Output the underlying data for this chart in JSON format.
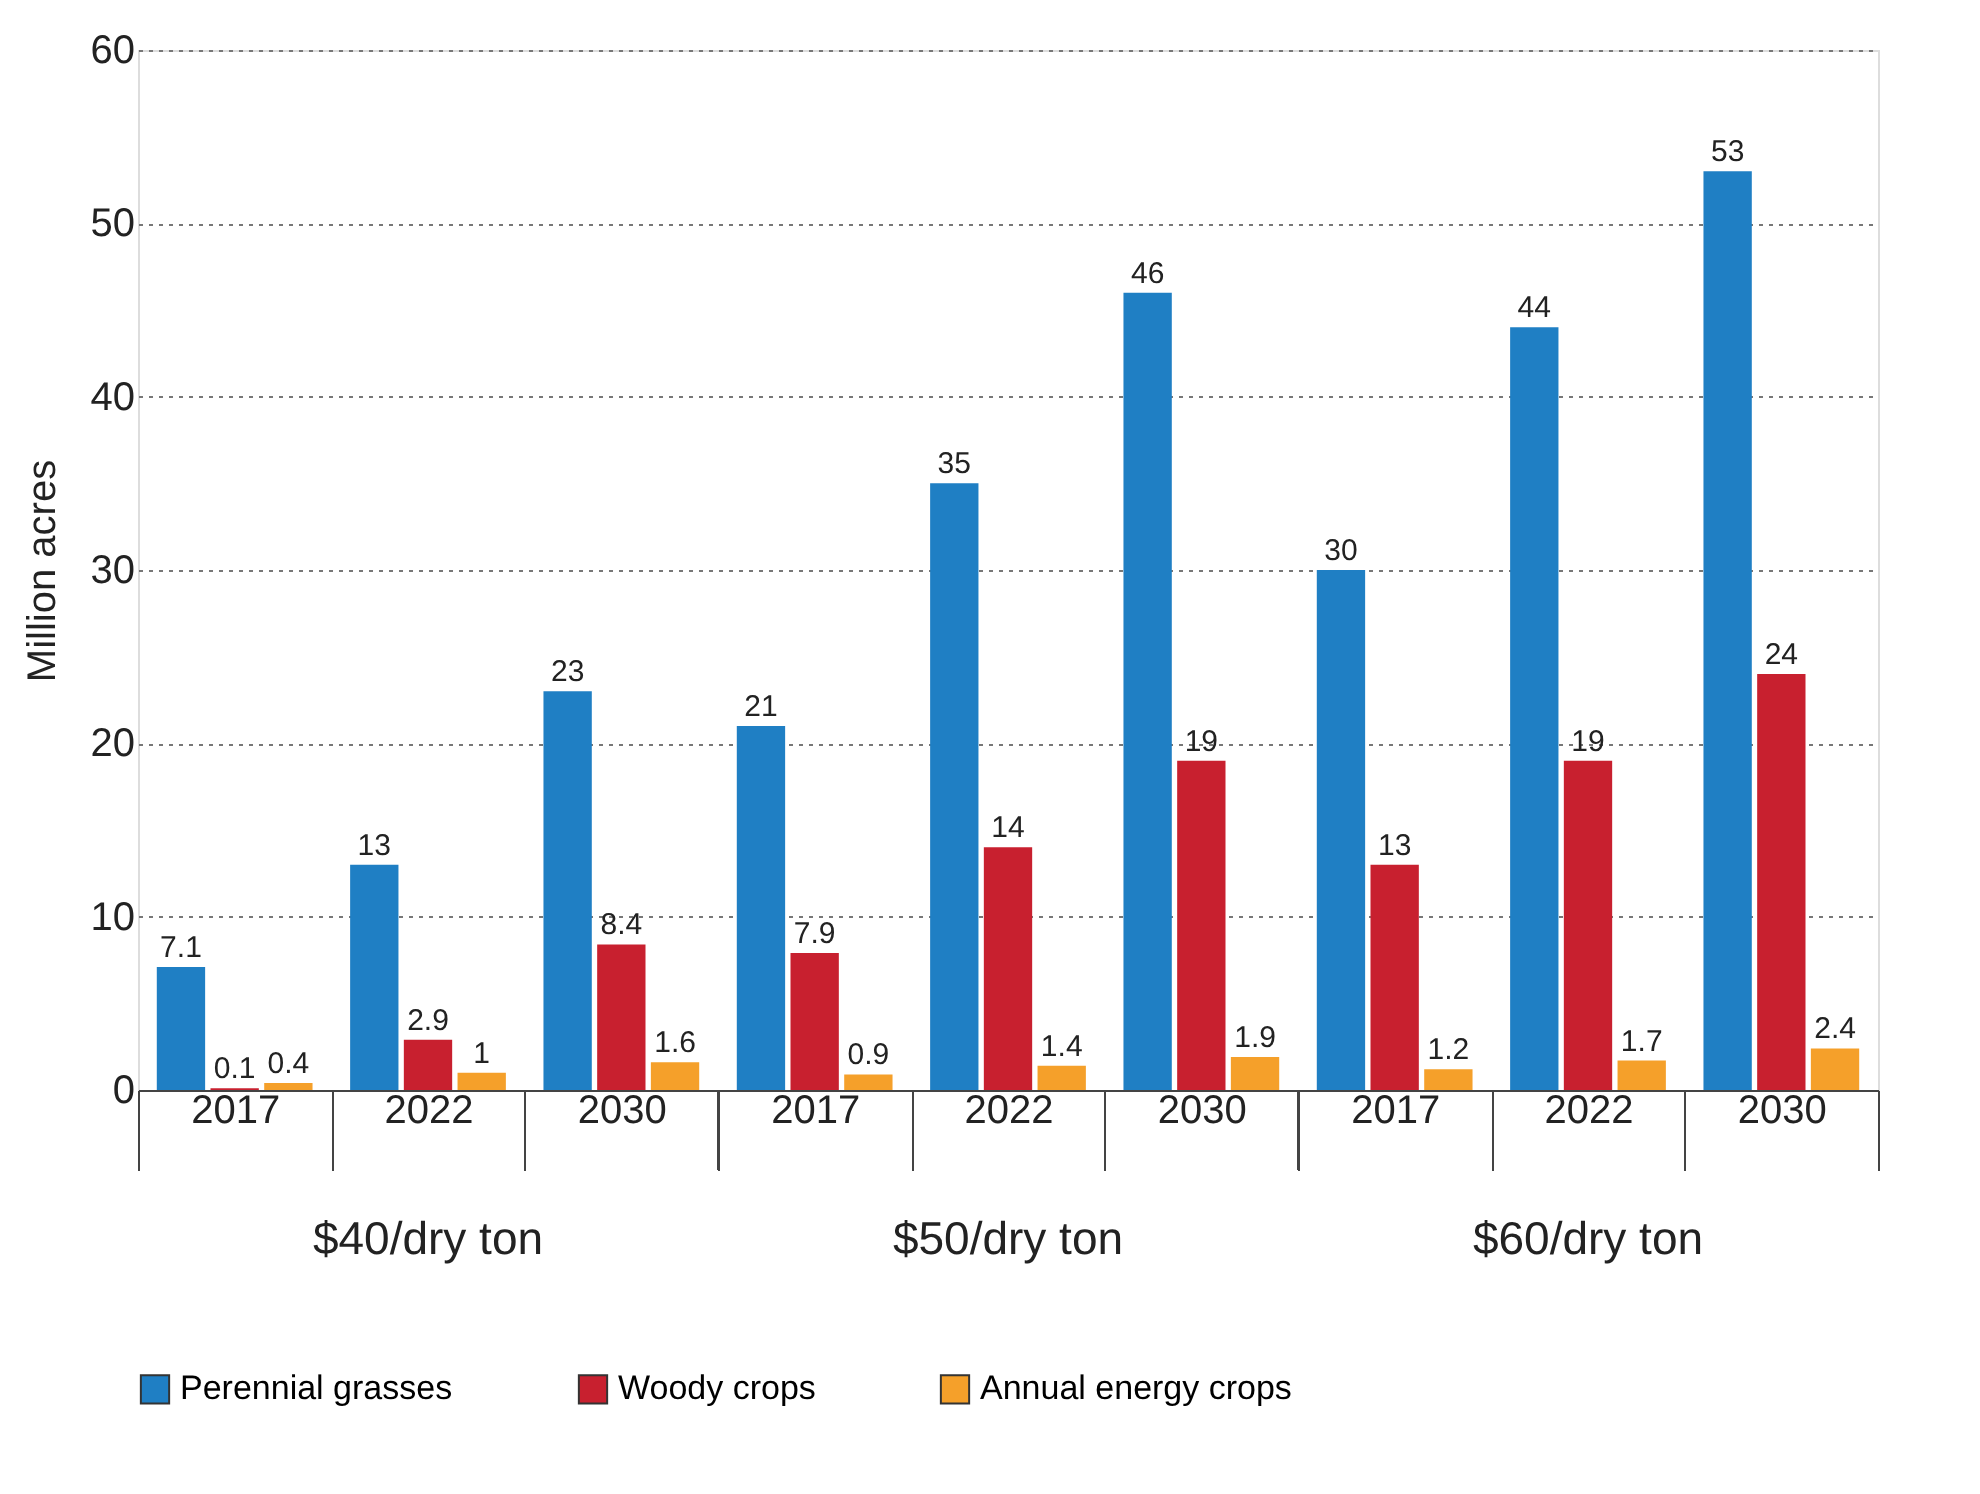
{
  "chart_data": {
    "type": "bar",
    "ylabel": "Million acres",
    "categories": [
      "2017",
      "2022",
      "2030",
      "2017",
      "2022",
      "2030",
      "2017",
      "2022",
      "2030"
    ],
    "annotations": [
      "$40/dry ton",
      "$50/dry ton",
      "$60/dry ton"
    ],
    "series": [
      {
        "name": "Perennial grasses",
        "color": "#1f7fc4",
        "values": [
          7.1,
          13,
          23,
          21,
          35,
          46,
          30,
          44,
          53
        ]
      },
      {
        "name": "Woody crops",
        "color": "#c8202f",
        "values": [
          0.1,
          2.9,
          8.4,
          7.9,
          14,
          19,
          13,
          19,
          24
        ]
      },
      {
        "name": "Annual energy crops",
        "color": "#f5a02a",
        "values": [
          0.4,
          1,
          1.6,
          0.9,
          1.4,
          1.9,
          1.2,
          1.7,
          2.4
        ]
      }
    ],
    "ylim": [
      0,
      60
    ],
    "yticks": [
      0,
      10,
      20,
      30,
      40,
      50,
      60
    ],
    "grid": "y",
    "legend": "bottom",
    "data_labels": true
  }
}
